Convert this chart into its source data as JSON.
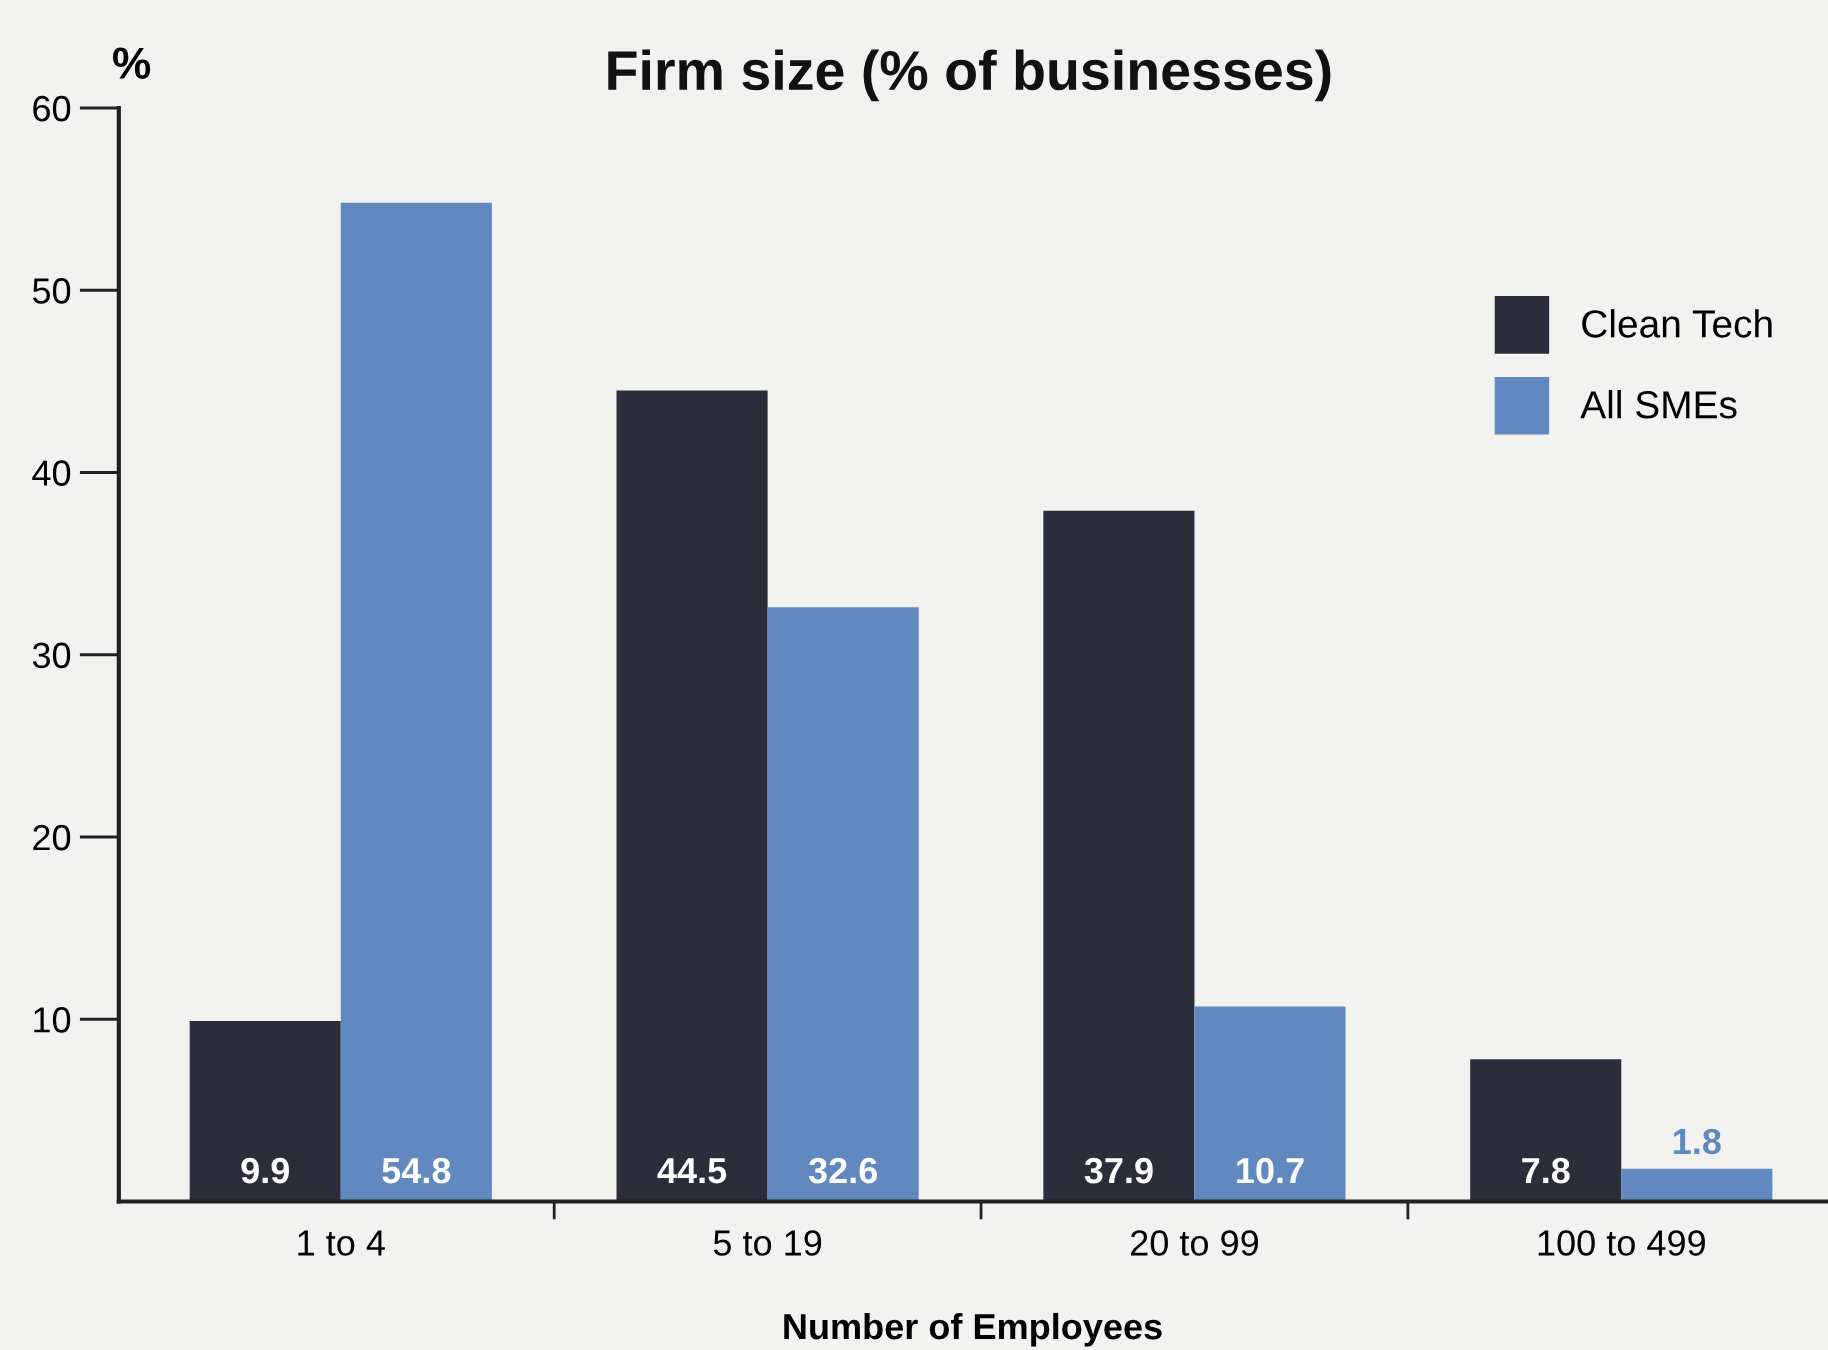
{
  "chart_data": {
    "type": "bar",
    "title": "Firm size (% of businesses)",
    "xlabel": "Number of Employees",
    "ylabel": "%",
    "categories": [
      "1 to 4",
      "5 to 19",
      "20 to 99",
      "100 to 499"
    ],
    "series": [
      {
        "name": "Clean Tech",
        "color": "#2b2d3b",
        "values": [
          9.9,
          44.5,
          37.9,
          7.8
        ]
      },
      {
        "name": "All SMEs",
        "color": "#6189bf",
        "values": [
          54.8,
          32.6,
          10.7,
          1.8
        ]
      }
    ],
    "ylim": [
      0,
      60
    ],
    "yticks": [
      10,
      20,
      30,
      40,
      50,
      60
    ],
    "data_labels": true,
    "legend": "top right",
    "grid": false
  }
}
